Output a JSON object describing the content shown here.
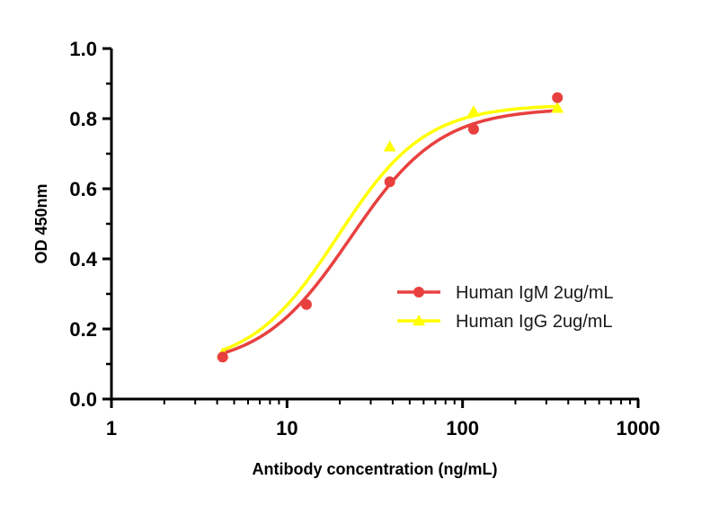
{
  "chart_data": {
    "type": "line",
    "title": "",
    "xlabel": "Antibody concentration (ng/mL)",
    "ylabel": "OD 450nm",
    "x_scale": "log",
    "xlim": [
      1,
      1000
    ],
    "ylim": [
      0,
      1.0
    ],
    "x_ticks": [
      1,
      10,
      100,
      1000
    ],
    "x_tick_labels": [
      "1",
      "10",
      "100",
      "1000"
    ],
    "y_ticks": [
      0,
      0.2,
      0.4,
      0.6,
      0.8,
      1.0
    ],
    "y_tick_labels": [
      "0.0",
      "0.2",
      "0.4",
      "0.6",
      "0.8",
      "1.0"
    ],
    "grid": false,
    "legend_position": "center-right",
    "series": [
      {
        "name": "Human IgM 2ug/mL",
        "color": "#e8403f",
        "marker": "circle",
        "x": [
          4.3,
          12.9,
          38.5,
          115.6,
          347
        ],
        "y": [
          0.12,
          0.27,
          0.62,
          0.77,
          0.86
        ],
        "fit": {
          "bottom": 0.09,
          "top": 0.83,
          "ec50": 23,
          "hill": 1.7
        }
      },
      {
        "name": "Human IgG 2ug/mL",
        "color": "#ffff00",
        "marker": "triangle",
        "x": [
          4.3,
          38.5,
          115.6,
          347
        ],
        "y": [
          0.13,
          0.72,
          0.82,
          0.83
        ],
        "fit": {
          "bottom": 0.09,
          "top": 0.84,
          "ec50": 19.5,
          "hill": 1.75
        }
      }
    ]
  }
}
